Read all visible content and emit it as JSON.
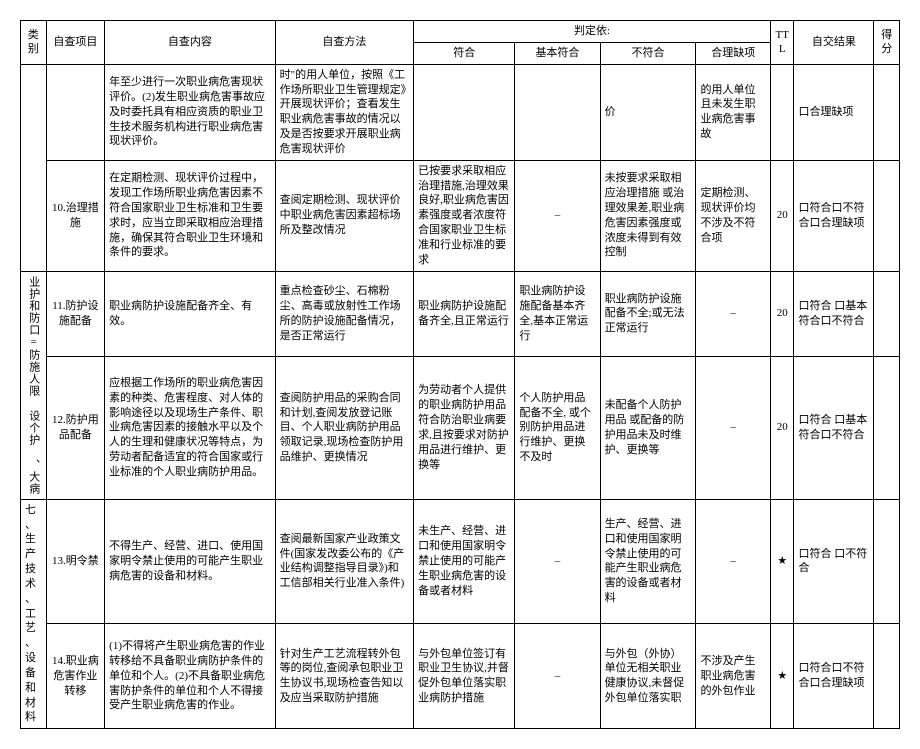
{
  "header": {
    "category": "类别",
    "item": "自查项目",
    "content": "自查内容",
    "method": "自查方法",
    "judge": "判定依:",
    "j_conform": "符合",
    "j_basic": "基本符合",
    "j_not": "不符合",
    "j_reasonable": "合理缺项",
    "ttl": "TTL",
    "result": "自交结果",
    "score": "得分"
  },
  "row0": {
    "content": "年至少进行一次职业病危害现状评价。(2)发生职业病危害事故应及时委托具有相应资质的职业卫生技术服务机构进行职业病危害现状评价。",
    "method": "时\"的用人单位，按照《工作场所职业卫生管理规定》开展现状评价；查看发生职业病危害事故的情况以及是否按要求开展职业病危害现状评价",
    "j3": "价",
    "j4": "的用人单位且未发生职业病危害事故",
    "result": "口合理缺项"
  },
  "row1": {
    "item": "10.治理措施",
    "content": "在定期检测、现状评价过程中，发现工作场所职业病危害因素不符合国家职业卫生标准和卫生要求时，应当立即采取相应治理措施，确保其符合职业卫生环境和条件的要求。",
    "method": "查阅定期检测、现状评价中职业病危害因素超标场所及整改情况",
    "j1": "已按要求采取相应治理措施,治理效果良好,职业病危害因素强度或者浓度符合国家职业卫生标准和行业标准的要求",
    "j2": "–",
    "j3": "未按要求采取相应治理措施  或治理效果差,职业病危害因素强度或浓度未得到有效控制",
    "j4": "定期检测、现状评价均不涉及不符合项",
    "ttl": "20",
    "result": "口符合口不符合口合理缺项"
  },
  "cat_a": "业护和防口=防施人限 设个护     、大病",
  "row2": {
    "item": "11.防护设施配备",
    "content": "职业病防护设施配备齐全、有效。",
    "method": "重点检查砂尘、石棉粉尘、高毒或放射性工作场所的防护设施配备情况，是否正常运行",
    "j1": "职业病防护设施配备齐全,且正常运行",
    "j2": "职业病防护设施配备基本齐全,基本正常运行",
    "j3": "职业病防护设施配备不全;或无法正常运行",
    "j4": "–",
    "ttl": "20",
    "result": "口符合 口基本符合口不符合"
  },
  "row3": {
    "item": "12.防护用品配备",
    "content": "应根据工作场所的职业病危害因素的种类、危害程度、对人体的影响途径以及现场生产条件、职业病危害因素的接触水平以及个人的生理和健康状况等特点，为劳动者配备适宜的符合国家或行业标准的个人职业病防护用品。",
    "method": "查阅防护用品的采购合同和计划,查阅发放登记账目、个人职业病防护用品领取记录,现场检查防护用品维护、更换情况",
    "j1": "为劳动者个人提供的职业病防护用品符合防治职业病要求,且按要求对防护用品进行维护、更换等",
    "j2": "个人防护用品配备不全,  或个别防护用品进行维护、更换不及时",
    "j3": "未配备个人防护用品  或配备的防护用品未及时维护、更换等",
    "j4": "–",
    "ttl": "20",
    "result": "口符合 口基本符合口不符合"
  },
  "cat_b": "七、生产技术、工艺、设备和材料",
  "row4": {
    "item": "13.明令禁",
    "content": "不得生产、经营、进口、使用国家明令禁止使用的可能产生职业病危害的设备和材料。",
    "method": "查阅最新国家产业政策文件(国家发改委公布的《产业结构调整指导目录》)和工信部相关行业准入条件)",
    "j1": "未生产、经营、进口和使用国家明令禁止使用的可能产生职业病危害的设备或者材料",
    "j2": "–",
    "j3": "生产、经营、进口和使用国家明令禁止使用的可能产生职业病危害的设备或者材料",
    "j4": "–",
    "ttl": "★",
    "result": "口符合 口不符合"
  },
  "row5": {
    "item": "14.职业病危害作业转移",
    "content": "(1)不得将产生职业病危害的作业转移给不具备职业病防护条件的单位和个人。(2)不具备职业病危害防护条件的单位和个人不得接受产生职业病危害的作业。",
    "method": "针对生产工艺流程转外包等的岗位,查阅承包职业卫生协议书,现场检查告知以及应当采取防护措施",
    "j1": "与外包单位签订有职业卫生协议,并督促外包单位落实职业病防护措施",
    "j2": "–",
    "j3": "与外包（外协）单位无相关职业健康协议,未督促外包单位落实职",
    "j4": "不涉及产生职业病危害的外包作业",
    "ttl": "★",
    "result": "口符合口不符合口合理缺项"
  }
}
